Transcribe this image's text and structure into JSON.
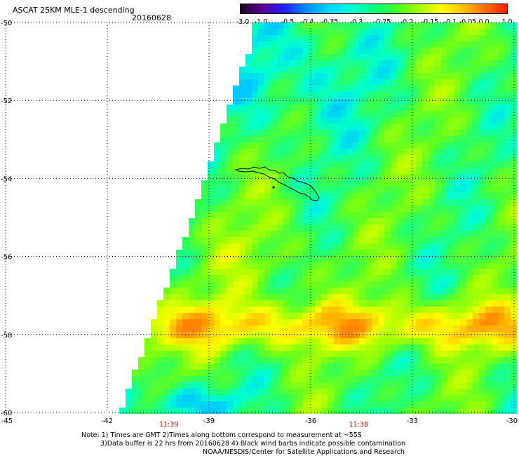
{
  "title": "ASCAT 25KM MLE-1 descending",
  "date": "20160628",
  "colorbar": {
    "labels": [
      "-3.0",
      "-1.0",
      "-0.5",
      "-0.4",
      "-0.35",
      "-0.3",
      "-0.25",
      "-0.2",
      "-0.15",
      "-0.1",
      "-0.05",
      "0.0",
      "1.0"
    ],
    "colors": [
      "#200020",
      "#5a0098",
      "#2020ff",
      "#0090ff",
      "#00d8ff",
      "#00ffd0",
      "#00ff80",
      "#40ff20",
      "#a0ff00",
      "#ffff00",
      "#ffc000",
      "#ff7000",
      "#ff2000"
    ]
  },
  "map": {
    "lat_labels": [
      "-50",
      "-52",
      "-54",
      "-56",
      "-58",
      "-60"
    ],
    "lon_labels": [
      "-45",
      "-42",
      "-39",
      "-36",
      "-33",
      "-30"
    ],
    "lat_range": [
      -60,
      -50
    ],
    "lon_range": [
      -45,
      -30
    ],
    "times": [
      {
        "label": "11:39",
        "lon": -40.2
      },
      {
        "label": "11:38",
        "lon": -34.6
      }
    ]
  },
  "notes": {
    "line1": "Note: 1) Times are GMT 2)Times along bottom correspond to measurement at ~55S",
    "line2": "3)Data buffer is 22 hrs from 20160628 4) Black wind barbs indicate possible contamination",
    "line3": "NOAA/NESDIS/Center for Satellite Applications and Research"
  }
}
